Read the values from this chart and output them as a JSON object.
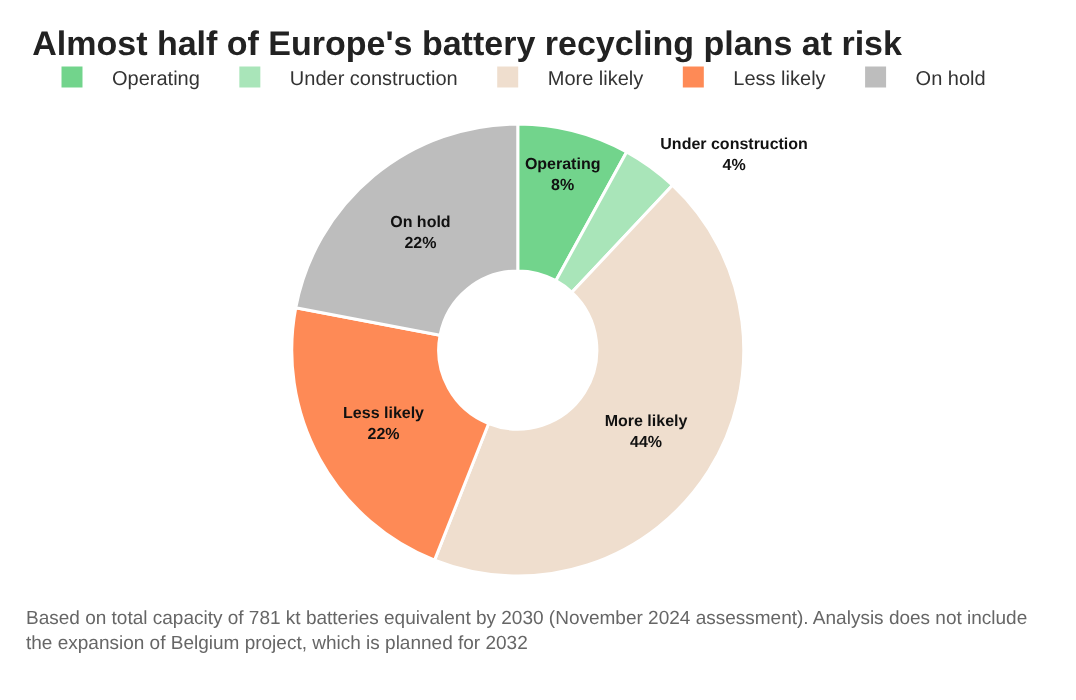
{
  "chart_data": {
    "type": "donut",
    "title": "Almost half of Europe's battery recycling plans at risk",
    "categories": [
      "Operating",
      "Under construction",
      "More likely",
      "Less likely",
      "On hold"
    ],
    "values": [
      8,
      4,
      44,
      22,
      22
    ],
    "value_labels": [
      "8%",
      "4%",
      "44%",
      "22%",
      "22%"
    ],
    "colors": [
      "#72d48c",
      "#a9e5b9",
      "#efdece",
      "#fe8a56",
      "#bdbdbd"
    ],
    "legend": "top left",
    "annotations": [
      "Based on total capacity of 781 kt batteries equivalent by 2030 (November 2024 assessment). Analysis does not include the expansion of Belgium project, which is planned for 2032"
    ]
  }
}
